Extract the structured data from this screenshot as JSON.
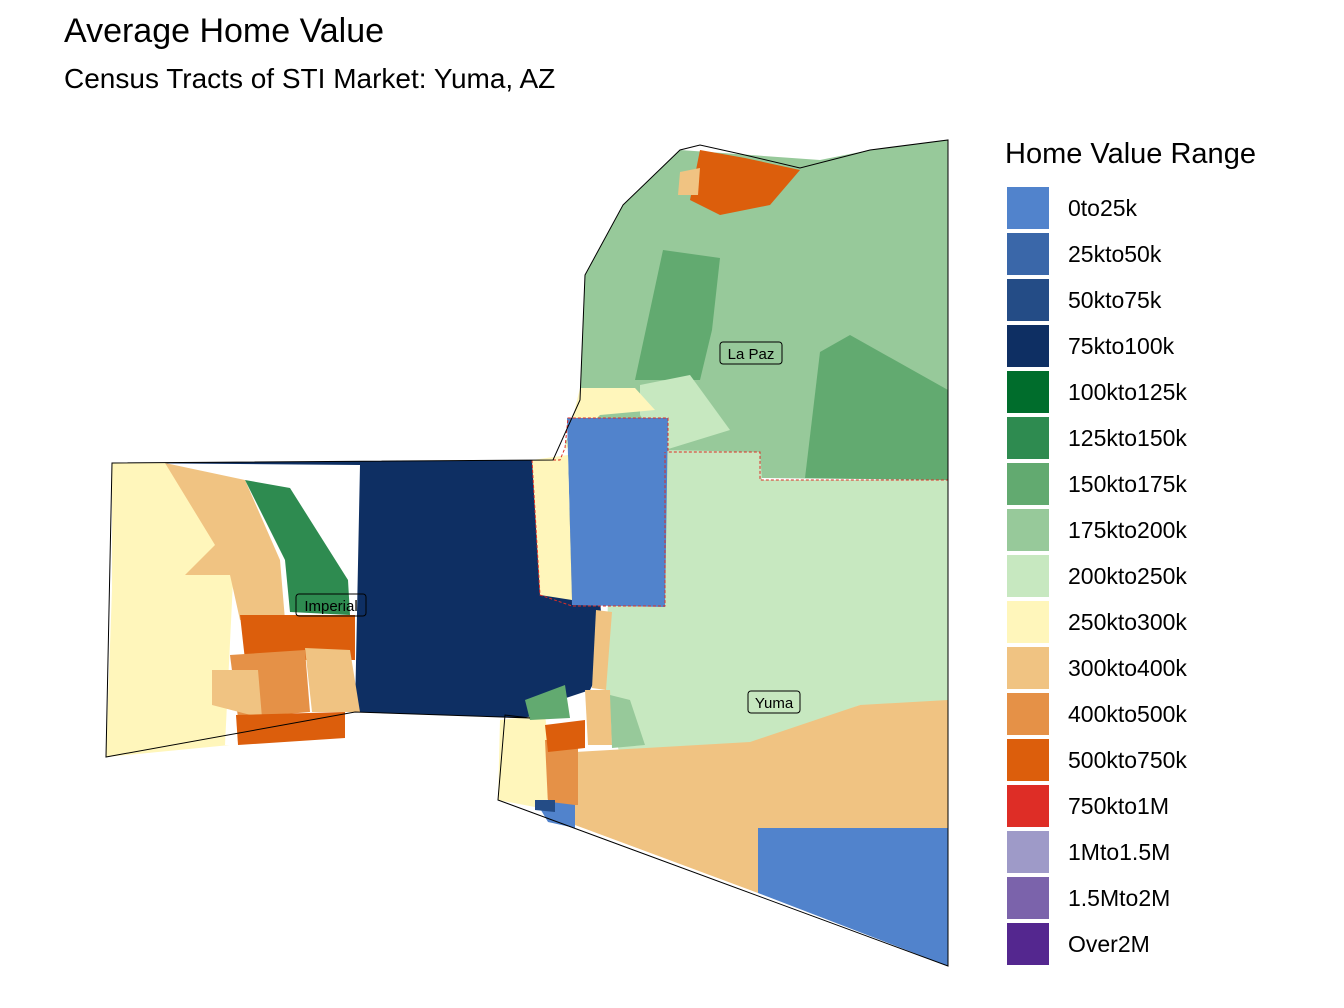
{
  "title": "Average Home Value",
  "subtitle": "Census Tracts of STI Market: Yuma, AZ",
  "legend": {
    "title": "Home Value Range",
    "items": [
      {
        "label": "0to25k",
        "color": "#5183cc"
      },
      {
        "label": "25kto50k",
        "color": "#3a67a9"
      },
      {
        "label": "50kto75k",
        "color": "#244c86"
      },
      {
        "label": "75kto100k",
        "color": "#0e2f63"
      },
      {
        "label": "100kto125k",
        "color": "#006d2c"
      },
      {
        "label": "125kto150k",
        "color": "#2e8b50"
      },
      {
        "label": "150kto175k",
        "color": "#62aa70"
      },
      {
        "label": "175kto200k",
        "color": "#97c99a"
      },
      {
        "label": "200kto250k",
        "color": "#c7e8c0"
      },
      {
        "label": "250kto300k",
        "color": "#fff6bb"
      },
      {
        "label": "300kto400k",
        "color": "#f0c382"
      },
      {
        "label": "400kto500k",
        "color": "#e59147"
      },
      {
        "label": "500kto750k",
        "color": "#dc5e0c"
      },
      {
        "label": "750kto1M",
        "color": "#de2d26"
      },
      {
        "label": "1Mto1.5M",
        "color": "#9e9ac8"
      },
      {
        "label": "1.5Mto2M",
        "color": "#7b63ab"
      },
      {
        "label": "Over2M",
        "color": "#54278f"
      }
    ]
  },
  "counties": {
    "imperial": "Imperial",
    "la_paz": "La Paz",
    "yuma": "Yuma"
  }
}
